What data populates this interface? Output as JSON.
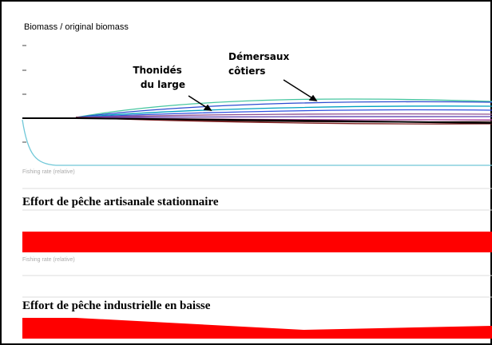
{
  "panel": {
    "y_label": "Biomass / original biomass",
    "annotations": [
      [
        "Thonidés",
        "du large"
      ],
      [
        "Démersaux",
        "côtiers"
      ]
    ],
    "fleets": [
      {
        "axis_label": "Fishing rate (relative)",
        "title": "Effort de pêche artisanale stationnaire"
      },
      {
        "axis_label": "Fishing rate (relative)",
        "title": "Effort de pêche industrielle en baisse"
      }
    ]
  }
}
